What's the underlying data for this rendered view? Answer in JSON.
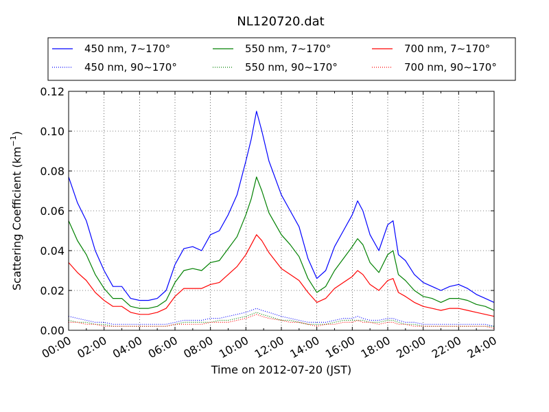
{
  "chart_data": {
    "type": "line",
    "title": "NL120720.dat",
    "xlabel": "Time on 2012-07-20 (JST)",
    "ylabel": "Scattering Coefficient (km",
    "ylabel_sup": "−1",
    "ylabel_close": ")",
    "xlim": [
      0,
      24
    ],
    "ylim": [
      0,
      0.12
    ],
    "grid": true,
    "legend_position": "top",
    "x_ticks": [
      {
        "v": 0,
        "label": "00:00"
      },
      {
        "v": 2,
        "label": "02:00"
      },
      {
        "v": 4,
        "label": "04:00"
      },
      {
        "v": 6,
        "label": "06:00"
      },
      {
        "v": 8,
        "label": "08:00"
      },
      {
        "v": 10,
        "label": "10:00"
      },
      {
        "v": 12,
        "label": "12:00"
      },
      {
        "v": 14,
        "label": "14:00"
      },
      {
        "v": 16,
        "label": "16:00"
      },
      {
        "v": 18,
        "label": "18:00"
      },
      {
        "v": 20,
        "label": "20:00"
      },
      {
        "v": 22,
        "label": "22:00"
      },
      {
        "v": 24,
        "label": "24:00"
      }
    ],
    "y_ticks": [
      {
        "v": 0,
        "label": "0.00"
      },
      {
        "v": 0.02,
        "label": "0.02"
      },
      {
        "v": 0.04,
        "label": "0.04"
      },
      {
        "v": 0.06,
        "label": "0.06"
      },
      {
        "v": 0.08,
        "label": "0.08"
      },
      {
        "v": 0.1,
        "label": "0.10"
      },
      {
        "v": 0.12,
        "label": "0.12"
      }
    ],
    "x": [
      0,
      0.5,
      1,
      1.5,
      2,
      2.5,
      3,
      3.5,
      4,
      4.5,
      5,
      5.5,
      6,
      6.5,
      7,
      7.5,
      8,
      8.5,
      9,
      9.5,
      10,
      10.3,
      10.6,
      10.9,
      11.3,
      12,
      12.5,
      13,
      13.5,
      14,
      14.5,
      15,
      15.5,
      16,
      16.3,
      16.6,
      17,
      17.5,
      18,
      18.3,
      18.6,
      19,
      19.5,
      20,
      20.5,
      21,
      21.5,
      22,
      22.5,
      23,
      23.5,
      24
    ],
    "series": [
      {
        "name": "450 nm, 7∼170°",
        "color": "#0000ff",
        "style": "solid",
        "values": [
          0.077,
          0.064,
          0.055,
          0.04,
          0.03,
          0.022,
          0.022,
          0.016,
          0.015,
          0.015,
          0.016,
          0.02,
          0.033,
          0.041,
          0.042,
          0.04,
          0.048,
          0.05,
          0.058,
          0.068,
          0.085,
          0.096,
          0.11,
          0.1,
          0.085,
          0.068,
          0.06,
          0.052,
          0.036,
          0.026,
          0.03,
          0.042,
          0.05,
          0.058,
          0.065,
          0.06,
          0.048,
          0.04,
          0.053,
          0.055,
          0.038,
          0.035,
          0.028,
          0.024,
          0.022,
          0.02,
          0.022,
          0.023,
          0.021,
          0.018,
          0.016,
          0.014
        ]
      },
      {
        "name": "450 nm, 90∼170°",
        "color": "#0000ff",
        "style": "dotted",
        "values": [
          0.007,
          0.006,
          0.005,
          0.004,
          0.004,
          0.003,
          0.003,
          0.003,
          0.003,
          0.003,
          0.003,
          0.003,
          0.004,
          0.005,
          0.005,
          0.005,
          0.006,
          0.006,
          0.007,
          0.008,
          0.009,
          0.01,
          0.011,
          0.01,
          0.009,
          0.007,
          0.006,
          0.005,
          0.004,
          0.004,
          0.004,
          0.005,
          0.006,
          0.006,
          0.007,
          0.006,
          0.005,
          0.005,
          0.006,
          0.006,
          0.005,
          0.004,
          0.004,
          0.003,
          0.003,
          0.003,
          0.003,
          0.003,
          0.003,
          0.003,
          0.003,
          0.002
        ]
      },
      {
        "name": "550 nm, 7∼170°",
        "color": "#008000",
        "style": "solid",
        "values": [
          0.055,
          0.045,
          0.038,
          0.028,
          0.021,
          0.016,
          0.016,
          0.012,
          0.011,
          0.011,
          0.012,
          0.015,
          0.024,
          0.03,
          0.031,
          0.03,
          0.034,
          0.035,
          0.041,
          0.047,
          0.058,
          0.066,
          0.077,
          0.07,
          0.059,
          0.048,
          0.043,
          0.037,
          0.026,
          0.019,
          0.022,
          0.03,
          0.036,
          0.042,
          0.046,
          0.043,
          0.034,
          0.029,
          0.038,
          0.04,
          0.028,
          0.025,
          0.02,
          0.017,
          0.016,
          0.014,
          0.016,
          0.016,
          0.015,
          0.013,
          0.012,
          0.01
        ]
      },
      {
        "name": "550 nm, 90∼170°",
        "color": "#008000",
        "style": "dotted",
        "values": [
          0.005,
          0.004,
          0.004,
          0.003,
          0.003,
          0.002,
          0.002,
          0.002,
          0.002,
          0.002,
          0.002,
          0.002,
          0.003,
          0.004,
          0.004,
          0.004,
          0.004,
          0.005,
          0.005,
          0.006,
          0.007,
          0.008,
          0.009,
          0.008,
          0.007,
          0.005,
          0.005,
          0.004,
          0.003,
          0.003,
          0.003,
          0.004,
          0.005,
          0.005,
          0.005,
          0.005,
          0.004,
          0.004,
          0.005,
          0.005,
          0.004,
          0.003,
          0.003,
          0.002,
          0.002,
          0.002,
          0.002,
          0.002,
          0.002,
          0.002,
          0.002,
          0.002
        ]
      },
      {
        "name": "700 nm, 7∼170°",
        "color": "#ff0000",
        "style": "solid",
        "values": [
          0.034,
          0.029,
          0.025,
          0.019,
          0.015,
          0.012,
          0.012,
          0.009,
          0.008,
          0.008,
          0.009,
          0.011,
          0.017,
          0.021,
          0.021,
          0.021,
          0.023,
          0.024,
          0.028,
          0.032,
          0.038,
          0.043,
          0.048,
          0.045,
          0.039,
          0.031,
          0.028,
          0.025,
          0.019,
          0.014,
          0.016,
          0.021,
          0.024,
          0.027,
          0.03,
          0.028,
          0.023,
          0.02,
          0.025,
          0.026,
          0.019,
          0.017,
          0.014,
          0.012,
          0.011,
          0.01,
          0.011,
          0.011,
          0.01,
          0.009,
          0.008,
          0.007
        ]
      },
      {
        "name": "700 nm, 90∼170°",
        "color": "#ff0000",
        "style": "dotted",
        "values": [
          0.004,
          0.004,
          0.003,
          0.003,
          0.002,
          0.002,
          0.002,
          0.002,
          0.002,
          0.002,
          0.002,
          0.002,
          0.003,
          0.003,
          0.003,
          0.003,
          0.004,
          0.004,
          0.004,
          0.005,
          0.006,
          0.007,
          0.008,
          0.007,
          0.006,
          0.005,
          0.004,
          0.004,
          0.003,
          0.002,
          0.003,
          0.003,
          0.004,
          0.004,
          0.005,
          0.004,
          0.004,
          0.003,
          0.004,
          0.004,
          0.003,
          0.003,
          0.002,
          0.002,
          0.002,
          0.002,
          0.002,
          0.002,
          0.002,
          0.002,
          0.002,
          0.001
        ]
      }
    ]
  }
}
